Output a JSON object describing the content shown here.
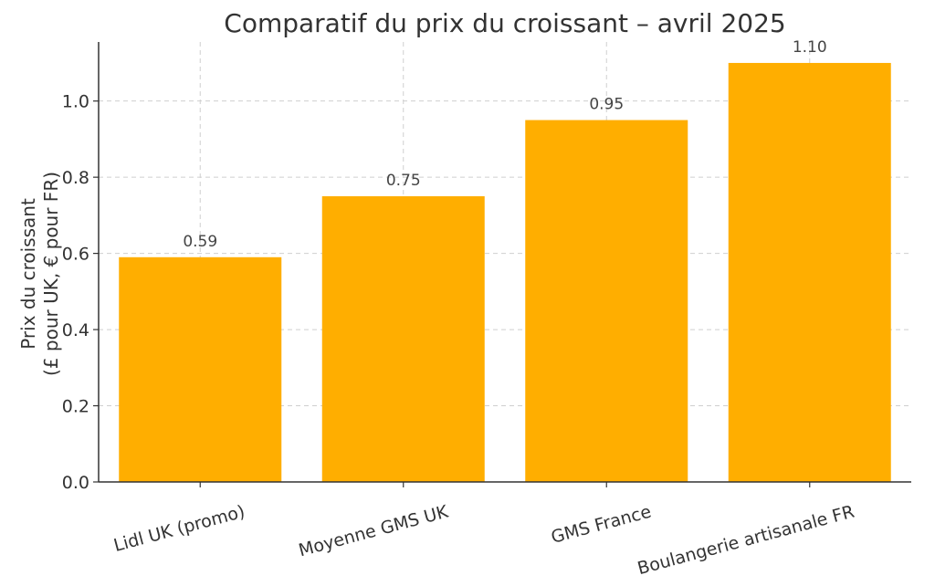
{
  "chart_data": {
    "type": "bar",
    "title": "Comparatif du prix du croissant – avril 2025",
    "xlabel": "",
    "ylabel": [
      "Prix du croissant",
      "(£ pour UK, € pour FR)"
    ],
    "categories": [
      "Lidl UK (promo)",
      "Moyenne GMS UK",
      "GMS France",
      "Boulangerie artisanale FR"
    ],
    "values": [
      0.59,
      0.75,
      0.95,
      1.1
    ],
    "value_labels": [
      "0.59",
      "0.75",
      "0.95",
      "1.10"
    ],
    "ylim": [
      0,
      1.155
    ],
    "yticks": [
      0.0,
      0.2,
      0.4,
      0.6,
      0.8,
      1.0
    ],
    "ytick_labels": [
      "0.0",
      "0.2",
      "0.4",
      "0.6",
      "0.8",
      "1.0"
    ],
    "grid": true,
    "bar_color": "#FFAE00"
  }
}
